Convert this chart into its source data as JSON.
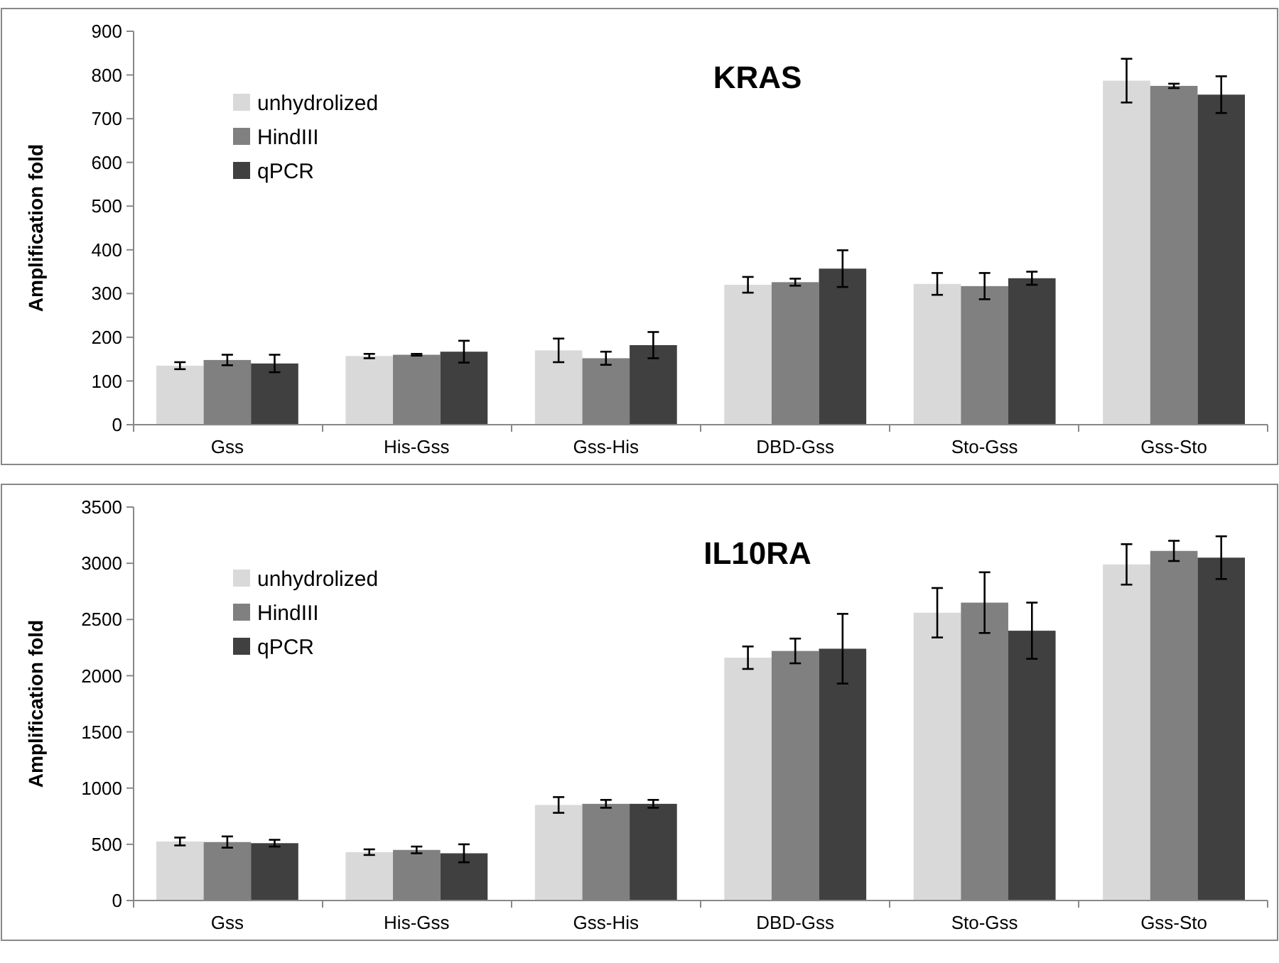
{
  "chart_data": [
    {
      "type": "bar",
      "title": "KRAS",
      "ylabel": "Amplification fold",
      "categories": [
        "Gss",
        "His-Gss",
        "Gss-His",
        "DBD-Gss",
        "Sto-Gss",
        "Gss-Sto"
      ],
      "ylim": [
        0,
        900
      ],
      "yticks": [
        0,
        100,
        200,
        300,
        400,
        500,
        600,
        700,
        800,
        900
      ],
      "legend": "top left",
      "grid": false,
      "series": [
        {
          "name": "unhydrolized",
          "color": "#d9d9d9",
          "values": [
            135,
            157,
            170,
            320,
            322,
            787
          ],
          "errors": [
            8,
            5,
            27,
            18,
            25,
            50
          ]
        },
        {
          "name": "HindIII",
          "color": "#808080",
          "values": [
            148,
            160,
            152,
            326,
            317,
            775
          ],
          "errors": [
            12,
            2,
            15,
            8,
            30,
            5
          ]
        },
        {
          "name": "qPCR",
          "color": "#404040",
          "values": [
            140,
            167,
            182,
            357,
            335,
            755
          ],
          "errors": [
            20,
            25,
            30,
            42,
            15,
            42
          ]
        }
      ]
    },
    {
      "type": "bar",
      "title": "IL10RA",
      "ylabel": "Amplification fold",
      "categories": [
        "Gss",
        "His-Gss",
        "Gss-His",
        "DBD-Gss",
        "Sto-Gss",
        "Gss-Sto"
      ],
      "ylim": [
        0,
        3500
      ],
      "yticks": [
        0,
        500,
        1000,
        1500,
        2000,
        2500,
        3000,
        3500
      ],
      "legend": "top left",
      "grid": false,
      "series": [
        {
          "name": "unhydrolized",
          "color": "#d9d9d9",
          "values": [
            525,
            430,
            850,
            2160,
            2560,
            2990
          ],
          "errors": [
            35,
            25,
            70,
            100,
            220,
            180
          ]
        },
        {
          "name": "HindIII",
          "color": "#808080",
          "values": [
            520,
            450,
            860,
            2220,
            2650,
            3110
          ],
          "errors": [
            50,
            30,
            35,
            110,
            270,
            90
          ]
        },
        {
          "name": "qPCR",
          "color": "#404040",
          "values": [
            510,
            420,
            860,
            2240,
            2400,
            3050
          ],
          "errors": [
            30,
            80,
            35,
            310,
            250,
            190
          ]
        }
      ]
    }
  ]
}
